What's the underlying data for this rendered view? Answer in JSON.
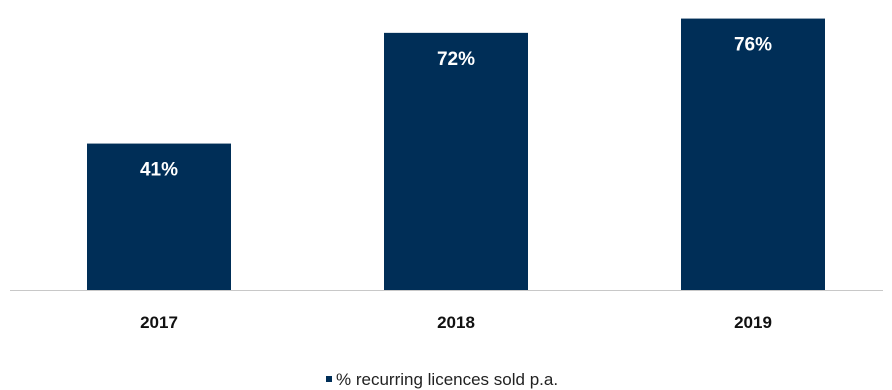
{
  "chart_data": {
    "type": "bar",
    "categories": [
      "2017",
      "2018",
      "2019"
    ],
    "series": [
      {
        "name": "% recurring licences sold p.a.",
        "values": [
          41,
          72,
          76
        ]
      }
    ],
    "data_labels": [
      "41%",
      "72%",
      "76%"
    ],
    "title": "",
    "xlabel": "",
    "ylabel": "",
    "ylim": [
      0,
      77
    ],
    "grid": false,
    "legend_position": "bottom",
    "colors": {
      "bar": "#002e57",
      "axis": "#c8c8c8",
      "data_label": "#ffffff"
    }
  }
}
